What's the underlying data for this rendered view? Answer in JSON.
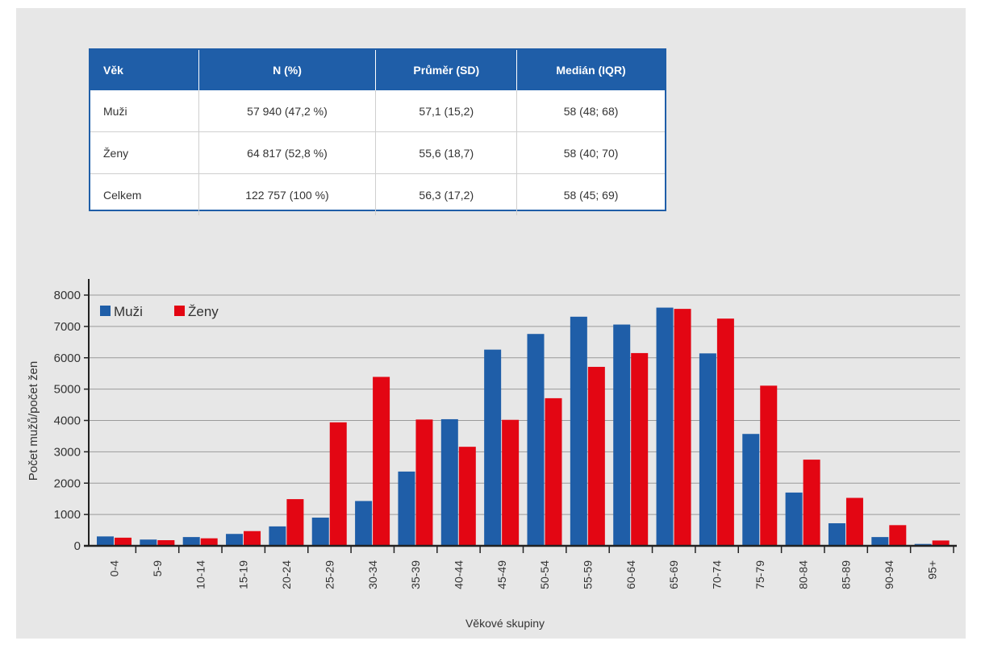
{
  "table": {
    "headers": [
      "Věk",
      "N (%)",
      "Průměr (SD)",
      "Medián (IQR)"
    ],
    "rows": [
      [
        "Muži",
        "57 940 (47,2 %)",
        "57,1 (15,2)",
        "58 (48; 68)"
      ],
      [
        "Ženy",
        "64 817 (52,8 %)",
        "55,6 (18,7)",
        "58 (40; 70)"
      ],
      [
        "Celkem",
        "122 757 (100 %)",
        "56,3 (17,2)",
        "58 (45; 69)"
      ]
    ]
  },
  "chart_data": {
    "type": "bar",
    "categories": [
      "0-4",
      "5-9",
      "10-14",
      "15-19",
      "20-24",
      "25-29",
      "30-34",
      "35-39",
      "40-44",
      "45-49",
      "50-54",
      "55-59",
      "60-64",
      "65-69",
      "70-74",
      "75-79",
      "80-84",
      "85-89",
      "90-94",
      "95+"
    ],
    "series": [
      {
        "name": "Muži",
        "color": "#1f5ea8",
        "values": [
          300,
          200,
          280,
          380,
          620,
          900,
          1430,
          2370,
          4040,
          6260,
          6760,
          7310,
          7060,
          7600,
          6140,
          3570,
          1700,
          720,
          280,
          60
        ]
      },
      {
        "name": "Ženy",
        "color": "#e30613",
        "values": [
          260,
          180,
          240,
          470,
          1490,
          3940,
          5390,
          4030,
          3160,
          4020,
          4710,
          5710,
          6150,
          7560,
          7250,
          5110,
          2750,
          1530,
          660,
          170
        ]
      }
    ],
    "xlabel": "Věkové skupiny",
    "ylabel": "Počet mužů/počet žen",
    "ylim": [
      0,
      8000
    ],
    "yticks": [
      0,
      1000,
      2000,
      3000,
      4000,
      5000,
      6000,
      7000,
      8000
    ],
    "grid": true,
    "legend": "top-left"
  }
}
